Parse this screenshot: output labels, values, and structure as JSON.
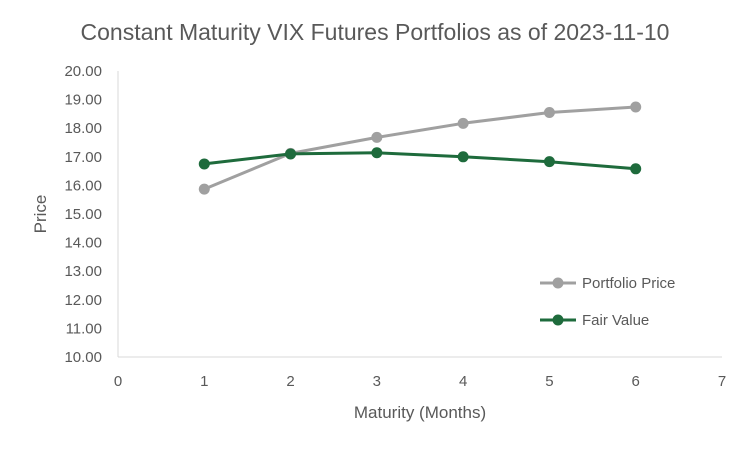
{
  "chart_data": {
    "type": "line",
    "title": "Constant Maturity VIX Futures Portfolios as of 2023-11-10",
    "xlabel": "Maturity (Months)",
    "ylabel": "Price",
    "xlim": [
      0,
      7
    ],
    "ylim": [
      10,
      20
    ],
    "x_ticks": [
      "0",
      "1",
      "2",
      "3",
      "4",
      "5",
      "6",
      "7"
    ],
    "y_ticks": [
      "10.00",
      "11.00",
      "12.00",
      "13.00",
      "14.00",
      "15.00",
      "16.00",
      "17.00",
      "18.00",
      "19.00",
      "20.00"
    ],
    "grid": false,
    "legend_position": "bottom-right",
    "x": [
      1,
      2,
      3,
      4,
      5,
      6
    ],
    "series": [
      {
        "name": "Portfolio Price",
        "color": "#a0a0a0",
        "values": [
          15.87,
          17.12,
          17.68,
          18.17,
          18.55,
          18.74
        ]
      },
      {
        "name": "Fair Value",
        "color": "#1e6b3c",
        "values": [
          16.75,
          17.1,
          17.14,
          17.0,
          16.83,
          16.58
        ]
      }
    ]
  }
}
